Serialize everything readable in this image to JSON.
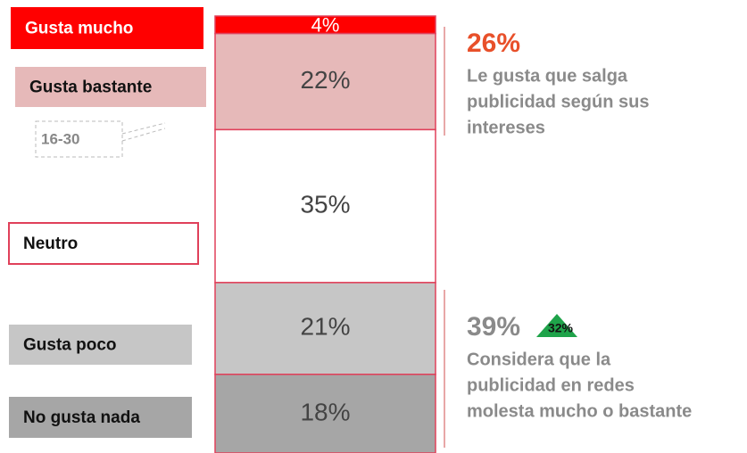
{
  "chart_data": {
    "type": "stacked-bar",
    "series": [
      {
        "name": "Gusta mucho",
        "color": "#ff0000",
        "values": [
          4
        ],
        "value_labels": [
          "4%"
        ]
      },
      {
        "name": "Gusta bastante",
        "color": "#e6b9b9",
        "values": [
          22
        ],
        "value_labels": [
          "22%"
        ]
      },
      {
        "name": "Neutro",
        "color": "#ffffff",
        "values": [
          35
        ],
        "value_labels": [
          "35%"
        ]
      },
      {
        "name": "Gusta poco",
        "color": "#c6c6c6",
        "values": [
          21
        ],
        "value_labels": [
          "21%"
        ]
      },
      {
        "name": "No gusta nada",
        "color": "#a6a6a6",
        "values": [
          18
        ],
        "value_labels": [
          "18%"
        ]
      }
    ],
    "ylim": [
      0,
      100
    ],
    "annotations": [
      {
        "value": 26,
        "label": "26%",
        "text": [
          "Le gusta que salga",
          "publicidad según sus",
          "intereses"
        ]
      },
      {
        "value": 39,
        "label": "39%",
        "text": [
          "Considera que la",
          "publicidad en redes",
          "molesta mucho o bastante"
        ],
        "badge": {
          "value": 32,
          "label": "32%"
        }
      }
    ],
    "note": "16-30"
  }
}
